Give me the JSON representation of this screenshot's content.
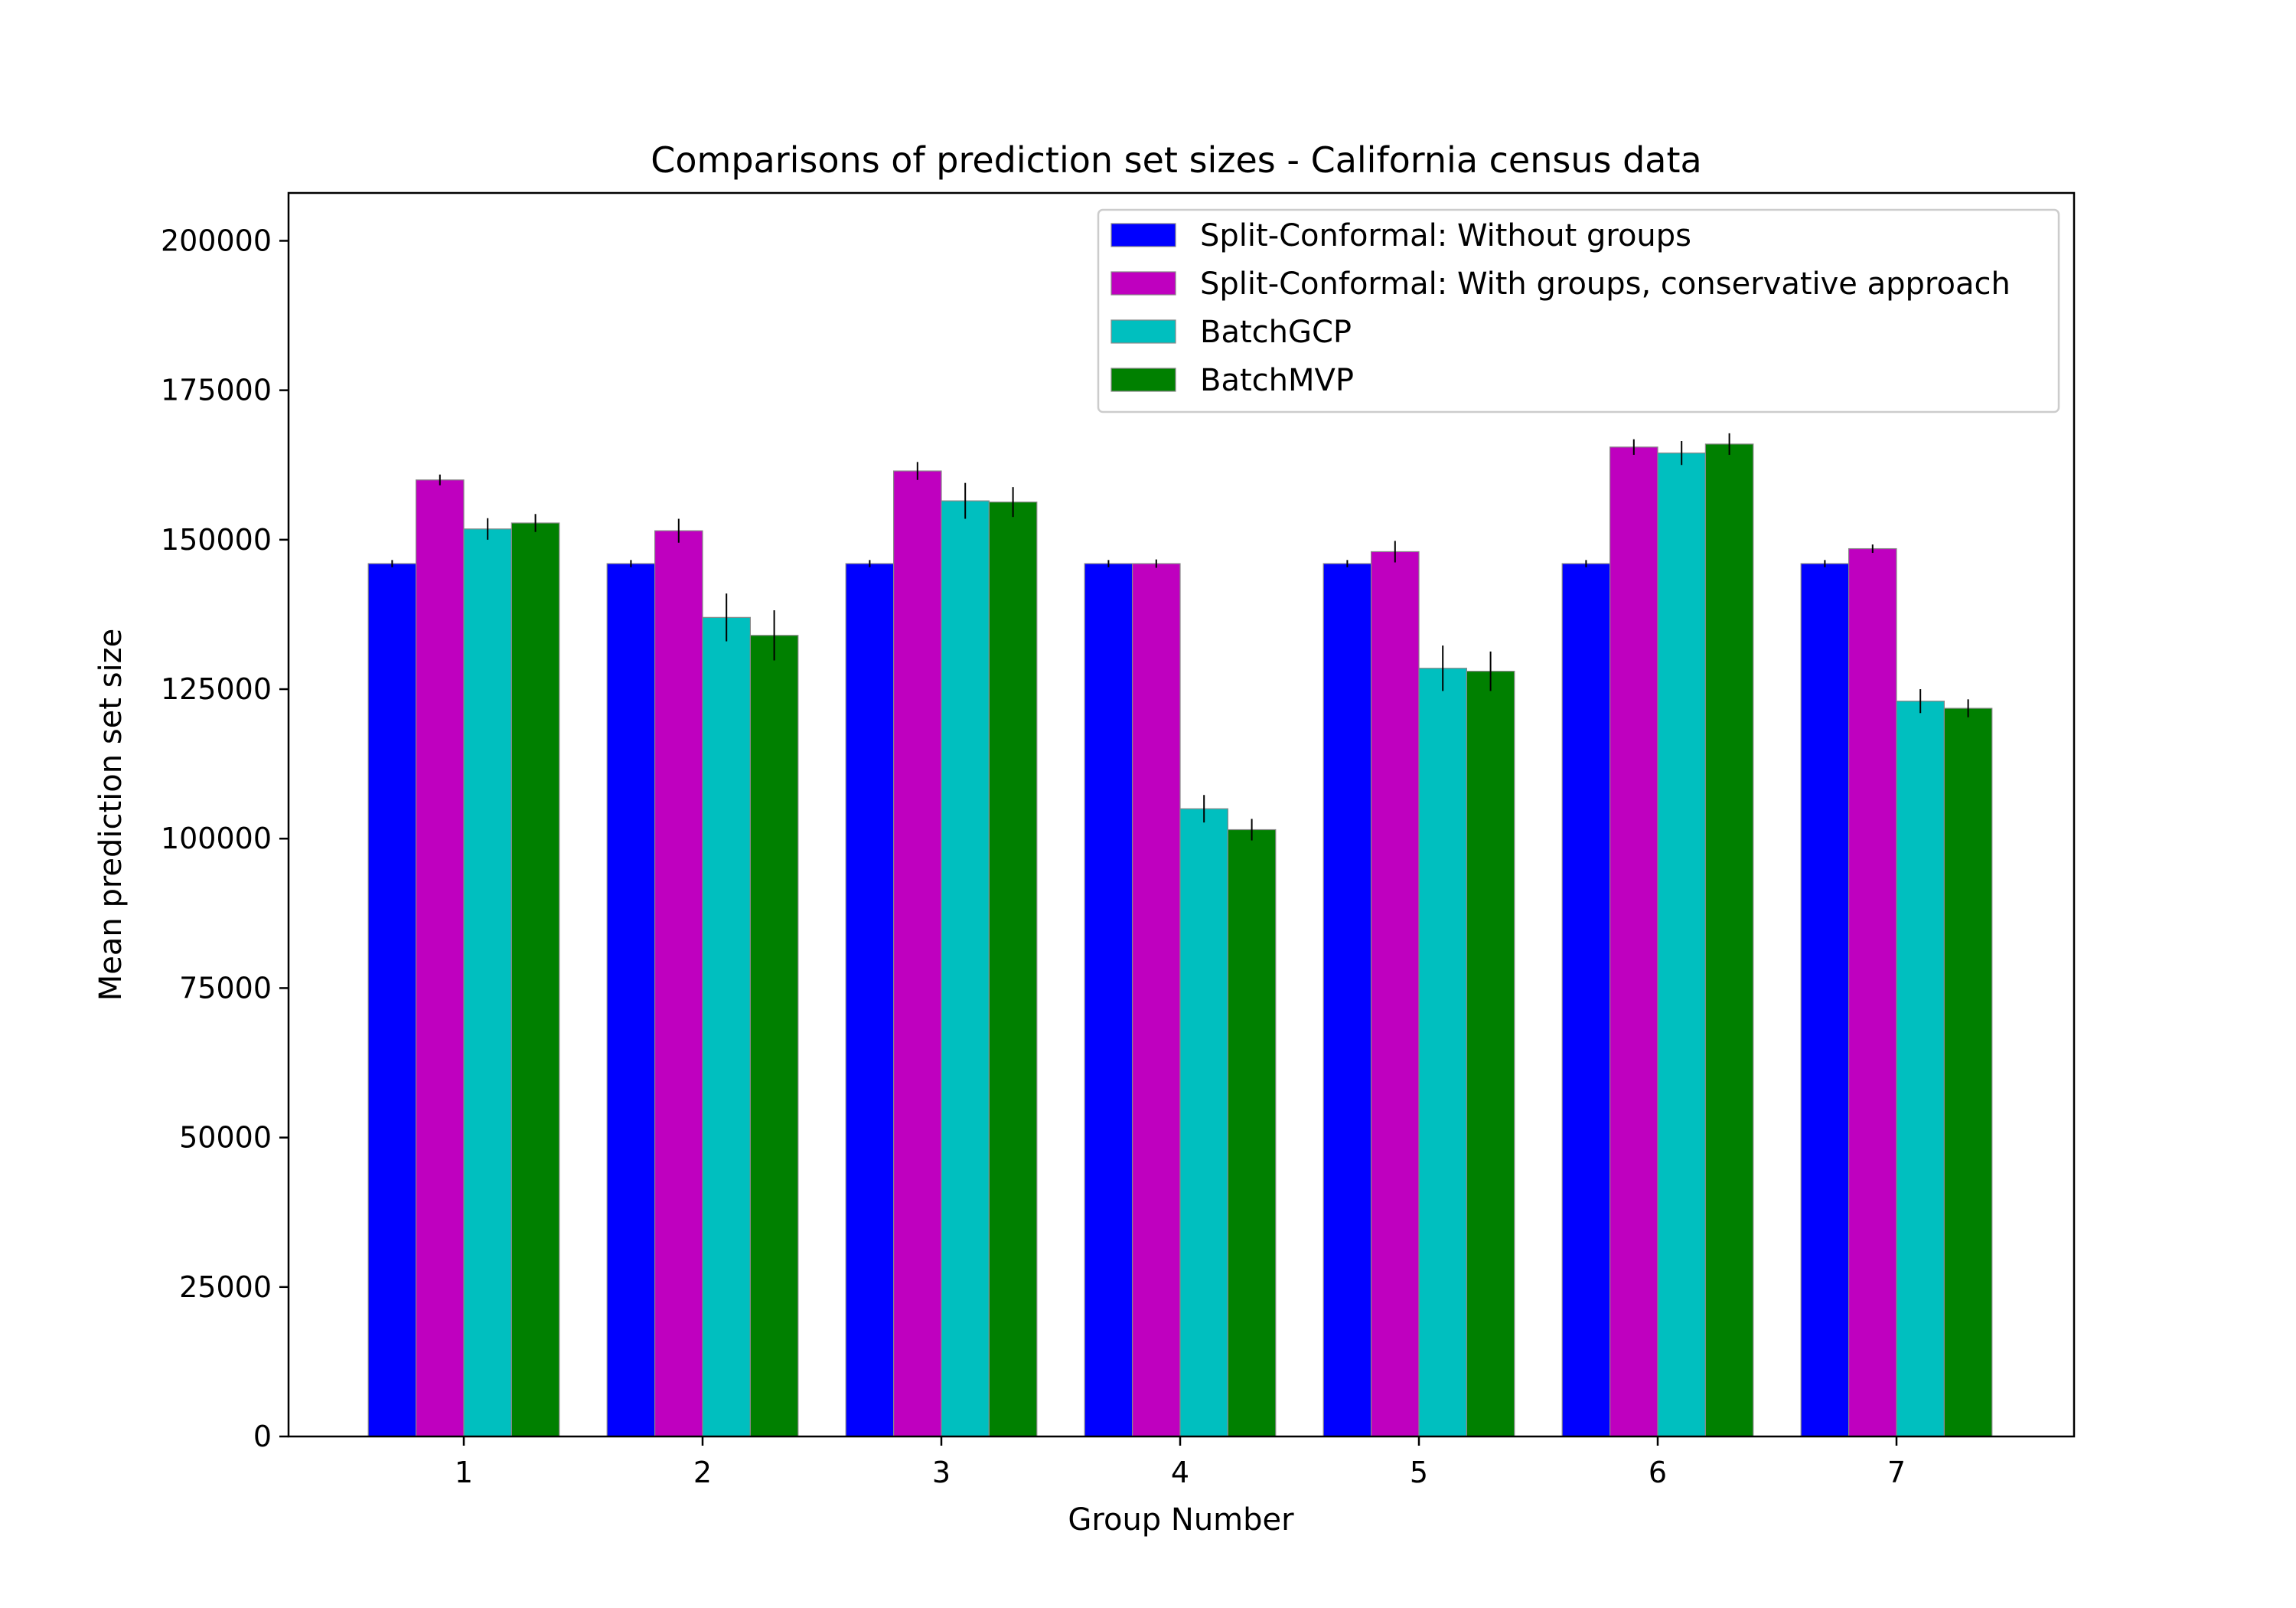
{
  "chart_data": {
    "type": "bar",
    "title": "Comparisons of prediction set sizes - California census data",
    "xlabel": "Group Number",
    "ylabel": "Mean prediction set size",
    "categories": [
      "1",
      "2",
      "3",
      "4",
      "5",
      "6",
      "7"
    ],
    "ylim": [
      0,
      208000
    ],
    "yticks": [
      0,
      25000,
      50000,
      75000,
      100000,
      125000,
      150000,
      175000,
      200000
    ],
    "grid": false,
    "legend_position": "top-right",
    "series": [
      {
        "name": "Split-Conformal: Without groups",
        "color": "#0000ff",
        "values": [
          146000,
          146000,
          146000,
          146000,
          146000,
          146000,
          146000
        ],
        "errors": [
          600,
          600,
          600,
          600,
          600,
          600,
          600
        ]
      },
      {
        "name": "Split-Conformal: With groups, conservative approach",
        "color": "#bf00bf",
        "values": [
          160000,
          151500,
          161500,
          146000,
          148000,
          165500,
          148500
        ],
        "errors": [
          900,
          2000,
          1500,
          700,
          1800,
          1300,
          700
        ]
      },
      {
        "name": "BatchGCP",
        "color": "#00bfbf",
        "values": [
          151800,
          137000,
          156500,
          105000,
          128500,
          164500,
          123000
        ],
        "errors": [
          1800,
          4000,
          3000,
          2300,
          3800,
          2000,
          2000
        ]
      },
      {
        "name": "BatchMVP",
        "color": "#008000",
        "values": [
          152800,
          134000,
          156300,
          101500,
          128000,
          166000,
          121800
        ],
        "errors": [
          1500,
          4200,
          2500,
          1800,
          3300,
          1800,
          1500
        ]
      }
    ]
  }
}
